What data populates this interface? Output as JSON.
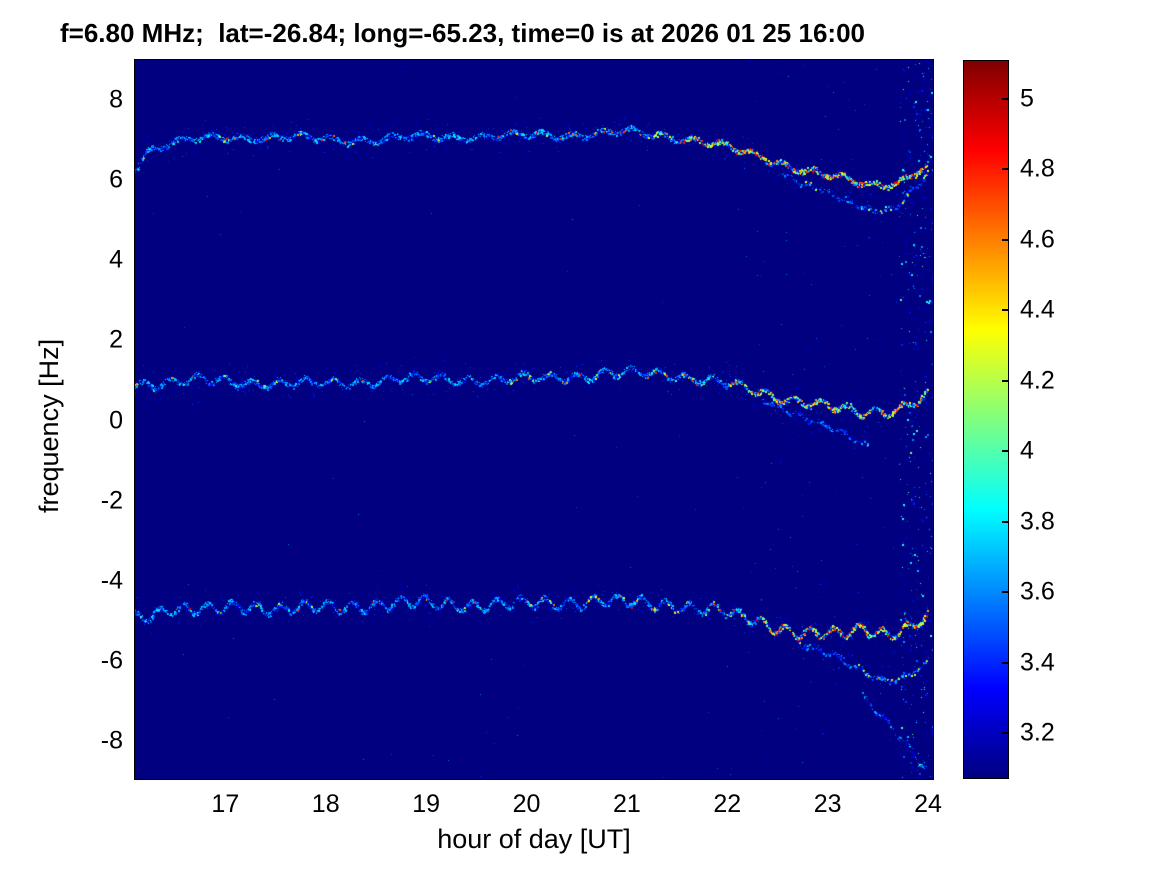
{
  "chart_data": {
    "type": "heatmap",
    "title": "f=6.80 MHz;  lat=-26.84; long=-65.23, time=0 is at 2026 01 25 16:00",
    "xlabel": "hour of day [UT]",
    "ylabel": "frequency [Hz]",
    "xlim": [
      16.1,
      24.05
    ],
    "ylim": [
      -8.95,
      9.0
    ],
    "xticks": [
      17,
      18,
      19,
      20,
      21,
      22,
      23,
      24
    ],
    "yticks": [
      8,
      6,
      4,
      2,
      0,
      -2,
      -4,
      -6,
      -8
    ],
    "grid": false,
    "background_value": 3.1,
    "background_color": "#00008c",
    "colorbar": {
      "colormap": "jet",
      "min": 3.07,
      "max": 5.11,
      "ticks": [
        5,
        4.8,
        4.6,
        4.4,
        4.2,
        4,
        3.8,
        3.6,
        3.4,
        3.2
      ],
      "position": "right"
    },
    "series": [
      {
        "name": "doppler-trace-upper",
        "role": "main",
        "points": [
          [
            16.1,
            6.3
          ],
          [
            16.22,
            6.75
          ],
          [
            16.45,
            6.95
          ],
          [
            16.9,
            7.05
          ],
          [
            17.5,
            7.1
          ],
          [
            18.1,
            7.0
          ],
          [
            18.7,
            7.05
          ],
          [
            19.3,
            7.1
          ],
          [
            19.9,
            7.1
          ],
          [
            20.5,
            7.15
          ],
          [
            21.0,
            7.2
          ],
          [
            21.45,
            7.1
          ],
          [
            21.8,
            6.95
          ],
          [
            22.1,
            6.75
          ],
          [
            22.4,
            6.55
          ],
          [
            22.7,
            6.3
          ],
          [
            23.0,
            6.1
          ],
          [
            23.3,
            5.95
          ],
          [
            23.55,
            5.9
          ],
          [
            23.8,
            6.05
          ],
          [
            24.0,
            6.4
          ]
        ],
        "wiggle_amp": 0.07,
        "wiggle_period": 0.3,
        "phase": 0.4,
        "hot_from": 19.6,
        "hot_prob": 0.22,
        "hot2_from": 21.6,
        "hot2_add": 0.3,
        "hot_max": 0.95
      },
      {
        "name": "doppler-trace-upper-branch",
        "role": "branch",
        "faint": true,
        "points": [
          [
            22.55,
            6.2
          ],
          [
            22.9,
            5.75
          ],
          [
            23.2,
            5.45
          ],
          [
            23.45,
            5.25
          ],
          [
            23.65,
            5.35
          ],
          [
            23.85,
            5.75
          ],
          [
            24.0,
            6.15
          ]
        ],
        "wiggle_amp": 0.05,
        "wiggle_period": 0.2,
        "phase": 1.1,
        "hot_from": 23.0,
        "hot_prob": 0.12,
        "hot_max": 0.5
      },
      {
        "name": "doppler-trace-middle",
        "role": "main",
        "points": [
          [
            16.1,
            0.9
          ],
          [
            16.7,
            1.0
          ],
          [
            17.3,
            0.95
          ],
          [
            17.9,
            0.9
          ],
          [
            18.5,
            1.0
          ],
          [
            19.1,
            1.05
          ],
          [
            19.7,
            1.0
          ],
          [
            20.3,
            1.1
          ],
          [
            20.8,
            1.15
          ],
          [
            21.3,
            1.2
          ],
          [
            21.7,
            1.05
          ],
          [
            22.1,
            0.85
          ],
          [
            22.5,
            0.6
          ],
          [
            22.9,
            0.4
          ],
          [
            23.3,
            0.2
          ],
          [
            23.6,
            0.25
          ],
          [
            23.8,
            0.4
          ],
          [
            24.0,
            0.65
          ]
        ],
        "wiggle_amp": 0.1,
        "wiggle_period": 0.27,
        "phase": 2.0,
        "hot_from": 19.2,
        "hot_prob": 0.2,
        "hot2_from": 22.0,
        "hot2_add": 0.22,
        "hot_max": 0.8
      },
      {
        "name": "doppler-trace-middle-branch",
        "role": "branch",
        "faint": true,
        "points": [
          [
            22.35,
            0.55
          ],
          [
            22.75,
            0.1
          ],
          [
            23.1,
            -0.3
          ],
          [
            23.4,
            -0.65
          ]
        ],
        "wiggle_amp": 0.05,
        "wiggle_period": 0.22,
        "phase": 0.0
      },
      {
        "name": "doppler-trace-lower",
        "role": "main",
        "points": [
          [
            16.1,
            -4.9
          ],
          [
            16.45,
            -4.7
          ],
          [
            16.8,
            -4.75
          ],
          [
            17.15,
            -4.6
          ],
          [
            17.5,
            -4.7
          ],
          [
            17.9,
            -4.68
          ],
          [
            18.3,
            -4.62
          ],
          [
            18.7,
            -4.58
          ],
          [
            19.1,
            -4.55
          ],
          [
            19.5,
            -4.6
          ],
          [
            19.9,
            -4.58
          ],
          [
            20.3,
            -4.55
          ],
          [
            20.7,
            -4.5
          ],
          [
            21.1,
            -4.55
          ],
          [
            21.5,
            -4.6
          ],
          [
            21.9,
            -4.75
          ],
          [
            22.2,
            -4.95
          ],
          [
            22.5,
            -5.15
          ],
          [
            22.8,
            -5.3
          ],
          [
            23.1,
            -5.35
          ],
          [
            23.35,
            -5.2
          ],
          [
            23.6,
            -5.3
          ],
          [
            23.8,
            -5.15
          ],
          [
            24.0,
            -4.9
          ]
        ],
        "wiggle_amp": 0.13,
        "wiggle_period": 0.24,
        "phase": 0.9,
        "hot_from": 19.0,
        "hot_prob": 0.2,
        "hot2_from": 22.35,
        "hot2_add": 0.33,
        "hot_max": 0.95
      },
      {
        "name": "doppler-trace-lower-branch-1",
        "role": "branch",
        "faint": true,
        "points": [
          [
            22.7,
            -5.5
          ],
          [
            23.0,
            -5.85
          ],
          [
            23.3,
            -6.2
          ],
          [
            23.55,
            -6.45
          ],
          [
            23.8,
            -6.35
          ],
          [
            24.0,
            -6.05
          ]
        ],
        "wiggle_amp": 0.06,
        "wiggle_period": 0.22,
        "phase": 1.6,
        "hot_from": 23.0,
        "hot_prob": 0.12,
        "hot_max": 0.6
      },
      {
        "name": "doppler-trace-lower-branch-2",
        "role": "branch",
        "faint": true,
        "points": [
          [
            23.35,
            -6.9
          ],
          [
            23.6,
            -7.5
          ],
          [
            23.8,
            -8.1
          ],
          [
            24.0,
            -8.8
          ]
        ],
        "wiggle_amp": 0.06,
        "wiggle_period": 0.22,
        "phase": 0.3
      }
    ],
    "noise": {
      "scatter_count": 380,
      "band_start": 22.0,
      "edge_count": 520,
      "edge_start": 23.72,
      "value_min": 3.15,
      "value_max": 3.6
    }
  }
}
